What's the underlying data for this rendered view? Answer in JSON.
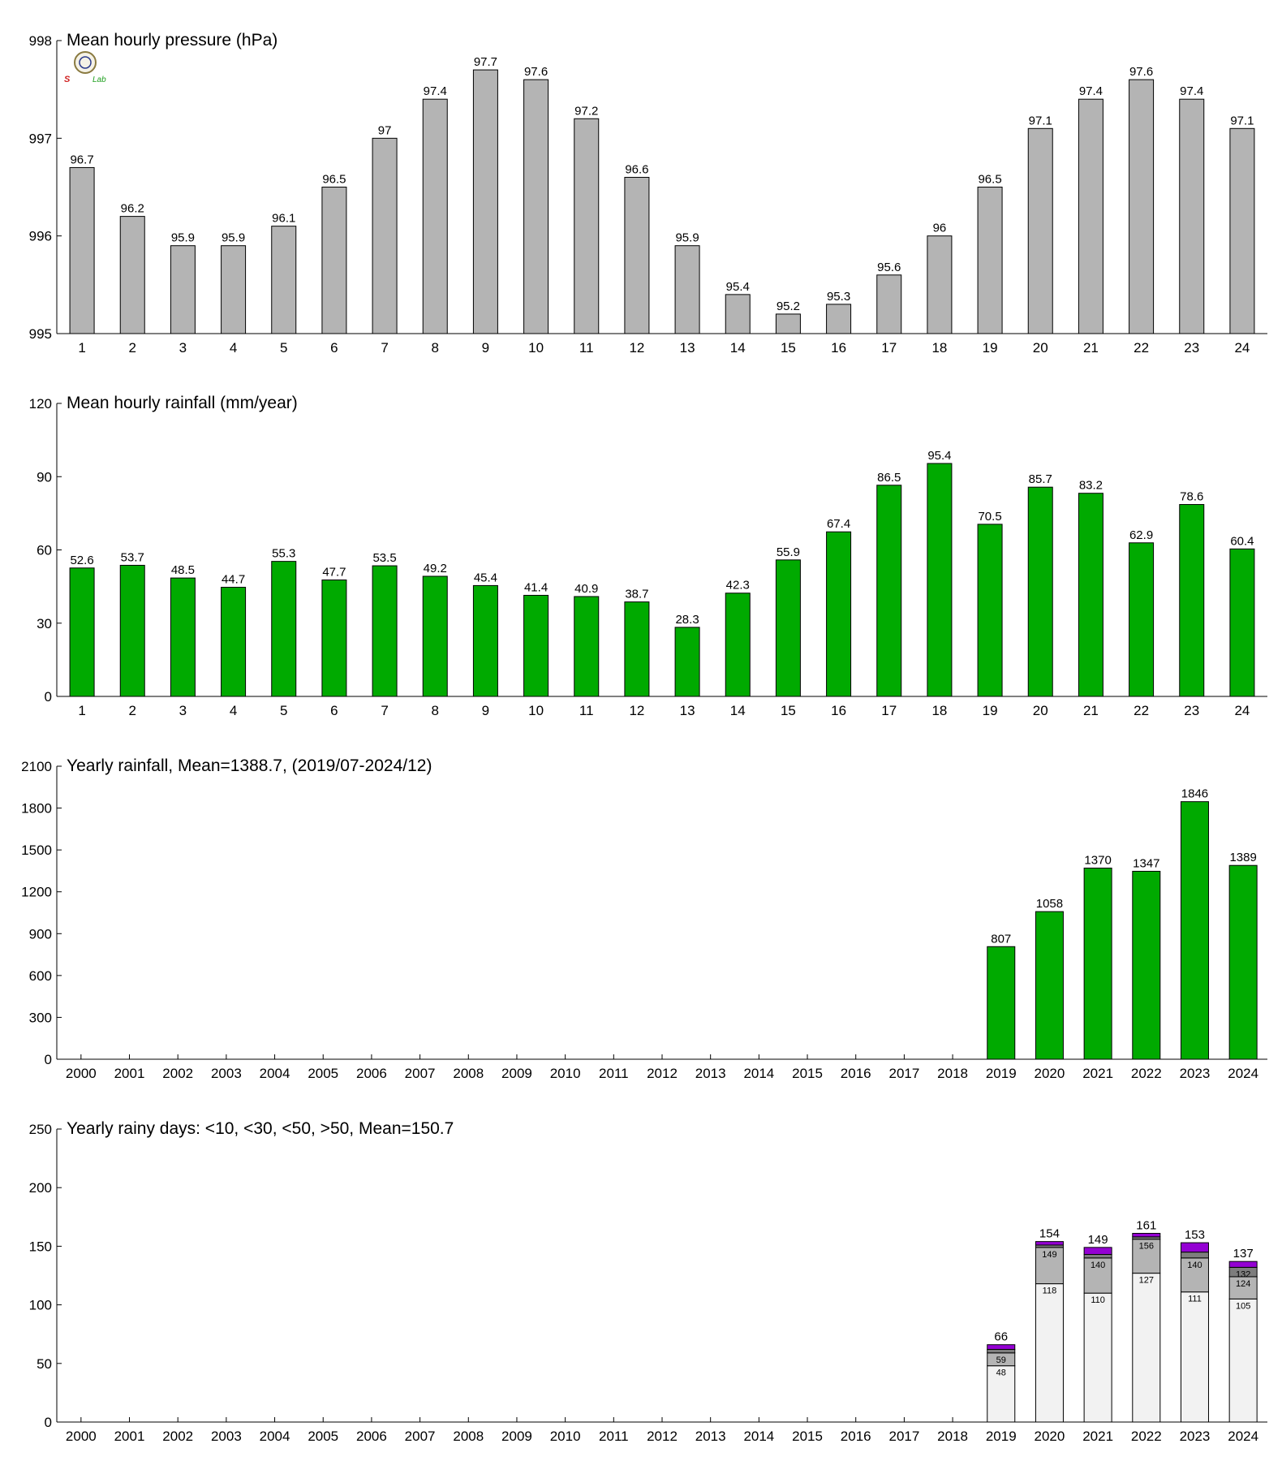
{
  "colors": {
    "gray_bar": "#b4b4b4",
    "green_bar": "#00aa00",
    "seg_lt10": "#f2f2f2",
    "seg_lt30": "#b4b4b4",
    "seg_lt50": "#7d7d7d",
    "seg_gt50": "#9400d3"
  },
  "logo": {
    "icon": "emblem-icon",
    "text_left": "S",
    "text_right": "Lab"
  },
  "chart_data": [
    {
      "type": "bar",
      "title": "Mean hourly pressure (hPa)",
      "categories": [
        "1",
        "2",
        "3",
        "4",
        "5",
        "6",
        "7",
        "8",
        "9",
        "10",
        "11",
        "12",
        "13",
        "14",
        "15",
        "16",
        "17",
        "18",
        "19",
        "20",
        "21",
        "22",
        "23",
        "24"
      ],
      "values": [
        996.7,
        996.2,
        995.9,
        995.9,
        996.1,
        996.5,
        997.0,
        997.4,
        997.7,
        997.6,
        997.2,
        996.6,
        995.9,
        995.4,
        995.2,
        995.3,
        995.6,
        996.0,
        996.5,
        997.1,
        997.4,
        997.6,
        997.4,
        997.1
      ],
      "data_labels": [
        "96.7",
        "96.2",
        "95.9",
        "95.9",
        "96.1",
        "96.5",
        "97",
        "97.4",
        "97.7",
        "97.6",
        "97.2",
        "96.6",
        "95.9",
        "95.4",
        "95.2",
        "95.3",
        "95.6",
        "96",
        "96.5",
        "97.1",
        "97.4",
        "97.6",
        "97.4",
        "97.1"
      ],
      "ylim": [
        995,
        998
      ],
      "yticks": [
        "995",
        "996",
        "997",
        "998"
      ],
      "color": "#b4b4b4",
      "grid": false
    },
    {
      "type": "bar",
      "title": "Mean hourly rainfall (mm/year)",
      "categories": [
        "1",
        "2",
        "3",
        "4",
        "5",
        "6",
        "7",
        "8",
        "9",
        "10",
        "11",
        "12",
        "13",
        "14",
        "15",
        "16",
        "17",
        "18",
        "19",
        "20",
        "21",
        "22",
        "23",
        "24"
      ],
      "values": [
        52.6,
        53.7,
        48.5,
        44.7,
        55.3,
        47.7,
        53.5,
        49.2,
        45.4,
        41.4,
        40.9,
        38.7,
        28.3,
        42.3,
        55.9,
        67.4,
        86.5,
        95.4,
        70.5,
        85.7,
        83.2,
        62.9,
        78.6,
        60.4
      ],
      "data_labels": [
        "52.6",
        "53.7",
        "48.5",
        "44.7",
        "55.3",
        "47.7",
        "53.5",
        "49.2",
        "45.4",
        "41.4",
        "40.9",
        "38.7",
        "28.3",
        "42.3",
        "55.9",
        "67.4",
        "86.5",
        "95.4",
        "70.5",
        "85.7",
        "83.2",
        "62.9",
        "78.6",
        "60.4"
      ],
      "ylim": [
        0,
        120
      ],
      "yticks": [
        "0",
        "30",
        "60",
        "90",
        "120"
      ],
      "color": "#00aa00",
      "grid": false
    },
    {
      "type": "bar",
      "title": "Yearly rainfall, Mean=1388.7, (2019/07-2024/12)",
      "categories": [
        "2000",
        "2001",
        "2002",
        "2003",
        "2004",
        "2005",
        "2006",
        "2007",
        "2008",
        "2009",
        "2010",
        "2011",
        "2012",
        "2013",
        "2014",
        "2015",
        "2016",
        "2017",
        "2018",
        "2019",
        "2020",
        "2021",
        "2022",
        "2023",
        "2024"
      ],
      "values": [
        null,
        null,
        null,
        null,
        null,
        null,
        null,
        null,
        null,
        null,
        null,
        null,
        null,
        null,
        null,
        null,
        null,
        null,
        null,
        807,
        1058,
        1370,
        1347,
        1846,
        1389
      ],
      "data_labels": [
        "",
        "",
        "",
        "",
        "",
        "",
        "",
        "",
        "",
        "",
        "",
        "",
        "",
        "",
        "",
        "",
        "",
        "",
        "",
        "807",
        "1058",
        "1370",
        "1347",
        "1846",
        "1389"
      ],
      "ylim": [
        0,
        2100
      ],
      "yticks": [
        "0",
        "300",
        "600",
        "900",
        "1200",
        "1500",
        "1800",
        "2100"
      ],
      "color": "#00aa00",
      "grid": false
    },
    {
      "type": "bar",
      "stacked": true,
      "title": "Yearly rainy days: <10, <30, <50, >50, Mean=150.7",
      "categories": [
        "2000",
        "2001",
        "2002",
        "2003",
        "2004",
        "2005",
        "2006",
        "2007",
        "2008",
        "2009",
        "2010",
        "2011",
        "2012",
        "2013",
        "2014",
        "2015",
        "2016",
        "2017",
        "2018",
        "2019",
        "2020",
        "2021",
        "2022",
        "2023",
        "2024"
      ],
      "cumulative": {
        "<10": [
          null,
          null,
          null,
          null,
          null,
          null,
          null,
          null,
          null,
          null,
          null,
          null,
          null,
          null,
          null,
          null,
          null,
          null,
          null,
          48,
          118,
          110,
          127,
          111,
          105
        ],
        "<30": [
          null,
          null,
          null,
          null,
          null,
          null,
          null,
          null,
          null,
          null,
          null,
          null,
          null,
          null,
          null,
          null,
          null,
          null,
          null,
          59,
          149,
          140,
          156,
          140,
          124
        ],
        "<50": [
          null,
          null,
          null,
          null,
          null,
          null,
          null,
          null,
          null,
          null,
          null,
          null,
          null,
          null,
          null,
          null,
          null,
          null,
          null,
          62,
          151,
          143,
          158,
          145,
          132
        ],
        ">50": [
          null,
          null,
          null,
          null,
          null,
          null,
          null,
          null,
          null,
          null,
          null,
          null,
          null,
          null,
          null,
          null,
          null,
          null,
          null,
          66,
          154,
          149,
          161,
          153,
          137
        ]
      },
      "segment_labels": {
        "<10": [
          "",
          "",
          "",
          "",
          "",
          "",
          "",
          "",
          "",
          "",
          "",
          "",
          "",
          "",
          "",
          "",
          "",
          "",
          "",
          "48",
          "118",
          "110",
          "127",
          "111",
          "105"
        ],
        "<30": [
          "",
          "",
          "",
          "",
          "",
          "",
          "",
          "",
          "",
          "",
          "",
          "",
          "",
          "",
          "",
          "",
          "",
          "",
          "",
          "59",
          "149",
          "140",
          "156",
          "140",
          "124"
        ],
        "<50": [
          "",
          "",
          "",
          "",
          "",
          "",
          "",
          "",
          "",
          "",
          "",
          "",
          "",
          "",
          "",
          "",
          "",
          "",
          "",
          "",
          "",
          "",
          "",
          "",
          "132"
        ]
      },
      "total_labels": [
        "",
        "",
        "",
        "",
        "",
        "",
        "",
        "",
        "",
        "",
        "",
        "",
        "",
        "",
        "",
        "",
        "",
        "",
        "",
        "66",
        "154",
        "149",
        "161",
        "153",
        "137"
      ],
      "ylim": [
        0,
        250
      ],
      "yticks": [
        "0",
        "50",
        "100",
        "150",
        "200",
        "250"
      ],
      "grid": false
    }
  ]
}
